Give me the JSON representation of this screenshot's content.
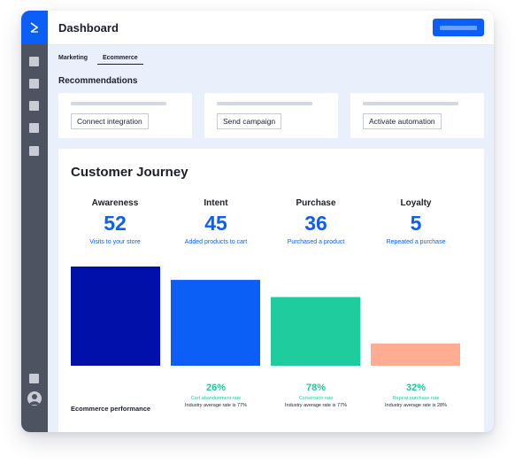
{
  "header": {
    "title": "Dashboard"
  },
  "sidebar": {
    "logo_icon": "chevron-right-icon",
    "items": [
      "nav-item-icon",
      "nav-item-icon",
      "nav-item-icon",
      "nav-item-icon",
      "nav-item-icon"
    ],
    "footer_items": [
      "settings-icon",
      "user-avatar-icon"
    ]
  },
  "tabs": [
    {
      "label": "Marketing",
      "active": false
    },
    {
      "label": "Ecommerce",
      "active": true
    }
  ],
  "recommendations": {
    "title": "Recommendations",
    "cards": [
      {
        "button_label": "Connect integration"
      },
      {
        "button_label": "Send campaign"
      },
      {
        "button_label": "Activate automation"
      }
    ]
  },
  "journey": {
    "title": "Customer Journey",
    "stages": [
      {
        "name": "Awareness",
        "value": "52",
        "description": "Visits to your store"
      },
      {
        "name": "Intent",
        "value": "45",
        "description": "Added products to cart"
      },
      {
        "name": "Purchase",
        "value": "36",
        "description": "Purchased a product"
      },
      {
        "name": "Loyalty",
        "value": "5",
        "description": "Repeated a purchase"
      }
    ],
    "performance_label": "Ecommerce performance",
    "metrics": [
      {
        "percent": "26%",
        "name": "Cart abandonment rate",
        "industry_avg": "Industry average rate is 77%"
      },
      {
        "percent": "78%",
        "name": "Conversion rate",
        "industry_avg": "Industry average rate is 77%"
      },
      {
        "percent": "32%",
        "name": "Repeat purchase rate",
        "industry_avg": "Industry average rate is 28%"
      }
    ]
  },
  "chart_data": {
    "type": "bar",
    "categories": [
      "Awareness",
      "Intent",
      "Purchase",
      "Loyalty"
    ],
    "values": [
      52,
      45,
      36,
      5
    ],
    "colors": [
      "#0010a8",
      "#0b5ff7",
      "#1fcc9d",
      "#ffac92"
    ],
    "ylim": [
      0,
      52
    ]
  },
  "colors": {
    "accent": "#0b5ff7",
    "sidebar": "#4e5362",
    "positive": "#22c79a"
  }
}
